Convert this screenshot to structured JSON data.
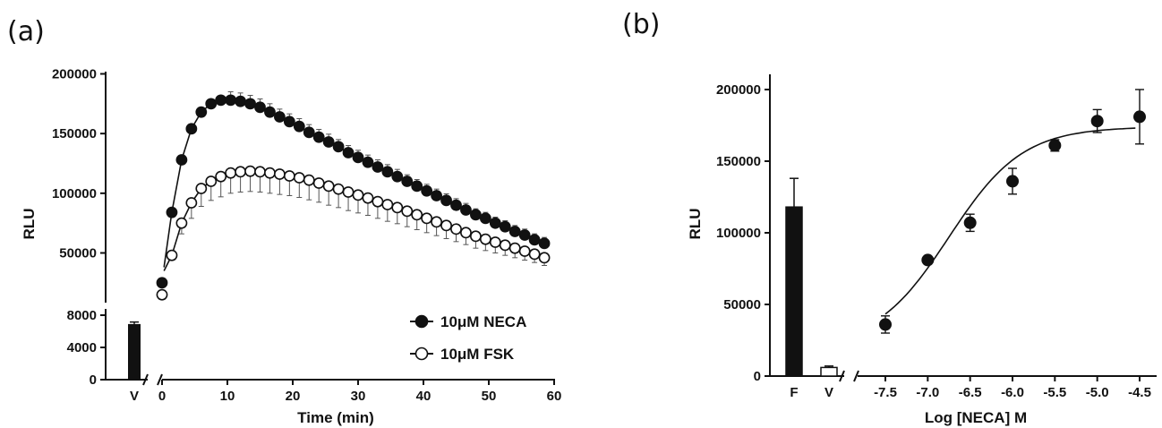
{
  "panels": {
    "a": "(a)",
    "b": "(b)"
  },
  "chart_data": [
    {
      "type": "line",
      "panel": "(a)",
      "xlabel": "Time (min)",
      "ylabel": "RLU",
      "x_ticks": [
        0,
        10,
        20,
        30,
        40,
        50,
        60
      ],
      "y_ticks_upper": [
        "50000",
        "100000",
        "150000",
        "200000"
      ],
      "y_ticks_lower": [
        "0",
        "4000",
        "8000"
      ],
      "xlim": [
        0,
        60
      ],
      "ylim_upper": [
        25000,
        200000
      ],
      "ylim_lower": [
        0,
        8000
      ],
      "bar": {
        "category": "V",
        "value": 6900,
        "error": 250
      },
      "legend_position": "bottom-right",
      "series": [
        {
          "name": "10μM NECA",
          "marker": "filled-circle",
          "x": [
            0,
            1.5,
            3,
            4.5,
            6,
            7.5,
            9,
            10.5,
            12,
            13.5,
            15,
            16.5,
            18,
            19.5,
            21,
            22.5,
            24,
            25.5,
            27,
            28.5,
            30,
            31.5,
            33,
            34.5,
            36,
            37.5,
            39,
            40.5,
            42,
            43.5,
            45,
            46.5,
            48,
            49.5,
            51,
            52.5,
            54,
            55.5,
            57,
            58.5
          ],
          "y": [
            25000,
            84000,
            128000,
            154000,
            168000,
            175000,
            178000,
            178000,
            177000,
            175000,
            172000,
            168000,
            164000,
            160000,
            156000,
            151000,
            147000,
            143000,
            139000,
            134000,
            130000,
            126000,
            122000,
            118000,
            114000,
            110000,
            106000,
            102000,
            98000,
            94000,
            90000,
            86000,
            82000,
            79000,
            75000,
            72000,
            68000,
            65000,
            61000,
            58000
          ],
          "error": [
            0,
            0,
            0,
            0,
            0,
            0,
            0,
            7000,
            7000,
            7000,
            7000,
            7000,
            6500,
            6500,
            6500,
            6500,
            6500,
            6500,
            6000,
            6000,
            6000,
            6000,
            6000,
            6000,
            6000,
            5500,
            5500,
            5500,
            5500,
            5500,
            5500,
            5500,
            5000,
            5000,
            5000,
            5000,
            5000,
            5000,
            5000,
            5000
          ]
        },
        {
          "name": "10μM FSK",
          "marker": "open-circle",
          "x": [
            0,
            1.5,
            3,
            4.5,
            6,
            7.5,
            9,
            10.5,
            12,
            13.5,
            15,
            16.5,
            18,
            19.5,
            21,
            22.5,
            24,
            25.5,
            27,
            28.5,
            30,
            31.5,
            33,
            34.5,
            36,
            37.5,
            39,
            40.5,
            42,
            43.5,
            45,
            46.5,
            48,
            49.5,
            51,
            52.5,
            54,
            55.5,
            57,
            58.5
          ],
          "y": [
            15000,
            48000,
            75000,
            92000,
            104000,
            110000,
            114000,
            117000,
            118000,
            118500,
            118000,
            117000,
            116000,
            114500,
            113000,
            111000,
            108500,
            106000,
            103500,
            101000,
            98500,
            96000,
            93000,
            90500,
            88000,
            85000,
            82000,
            79000,
            76000,
            73000,
            70000,
            67000,
            64000,
            61500,
            59000,
            56500,
            54000,
            51500,
            49000,
            46000
          ],
          "error": [
            0,
            0,
            9000,
            13000,
            15000,
            16000,
            17000,
            17000,
            17000,
            17000,
            17000,
            17000,
            17000,
            16500,
            16500,
            16500,
            16000,
            16000,
            15500,
            15500,
            15000,
            14500,
            14000,
            14000,
            13500,
            13000,
            12500,
            12000,
            11500,
            11000,
            10500,
            10000,
            10000,
            9500,
            9000,
            8500,
            8000,
            7500,
            7000,
            6500
          ]
        }
      ]
    },
    {
      "type": "scatter",
      "panel": "(b)",
      "xlabel": "Log [NECA] M",
      "ylabel": "RLU",
      "x_ticks": [
        "-7.5",
        "-7.0",
        "-6.5",
        "-6.0",
        "-5.5",
        "-5.0",
        "-4.5"
      ],
      "y_ticks": [
        "0",
        "50000",
        "100000",
        "150000",
        "200000"
      ],
      "ylim": [
        0,
        205000
      ],
      "bars": [
        {
          "category": "F",
          "value": 118000,
          "error": 20000,
          "fill": "#111111"
        },
        {
          "category": "V",
          "value": 6000,
          "error": 1000,
          "fill": "#ffffff"
        }
      ],
      "points": {
        "x": [
          -7.5,
          -7.0,
          -6.5,
          -6.0,
          -5.5,
          -5.0,
          -4.5
        ],
        "y": [
          36000,
          81000,
          107000,
          136000,
          161000,
          178000,
          181000
        ],
        "error": [
          6000,
          0,
          6000,
          9000,
          4000,
          8000,
          19000
        ]
      },
      "fit": {
        "bottom": 20000,
        "top": 174000,
        "logEC50": -6.75,
        "hill": 1.0
      }
    }
  ]
}
